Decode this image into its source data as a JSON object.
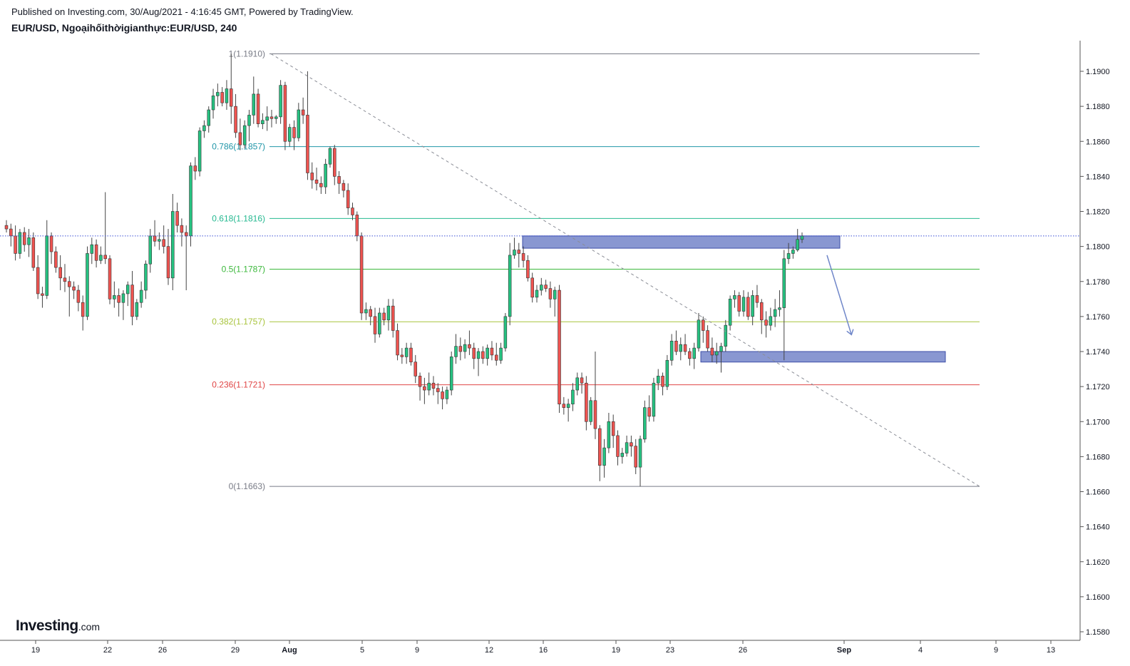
{
  "header": {
    "published": "Published on Investing.com, 30/Aug/2021 - 4:16:45 GMT, Powered by TradingView.",
    "symbol": "EUR/USD, Ngoạihốithờigianthực:EUR/USD, 240"
  },
  "logo": {
    "brand": "Investing",
    "suffix": ".com"
  },
  "colors": {
    "up": "#26c281",
    "down": "#ef5350",
    "wick": "#444444",
    "zone_fill": "#5c6fbf",
    "arrow": "#6f86c9",
    "last_price": "#3a4fd6"
  },
  "chart_data": {
    "type": "candlestick",
    "ylim": [
      1.1572,
      1.1922
    ],
    "y_ticks": [
      "1.1900",
      "1.1880",
      "1.1860",
      "1.1840",
      "1.1820",
      "1.1800",
      "1.1780",
      "1.1760",
      "1.1740",
      "1.1720",
      "1.1700",
      "1.1680",
      "1.1660",
      "1.1640",
      "1.1620",
      "1.1600",
      "1.1580"
    ],
    "x_ticks": [
      "19",
      "22",
      "26",
      "29",
      "Aug",
      "5",
      "9",
      "12",
      "16",
      "19",
      "23",
      "26",
      "Sep",
      "4",
      "9",
      "13"
    ],
    "last_price": 1.1806,
    "fibonacci": [
      {
        "label": "1(1.1910)",
        "value": 1.191,
        "color": "#787b86"
      },
      {
        "label": "0.786(1.1857)",
        "value": 1.1857,
        "color": "#2196a8"
      },
      {
        "label": "0.618(1.1816)",
        "value": 1.1816,
        "color": "#26b991"
      },
      {
        "label": "0.5(1.1787)",
        "value": 1.1787,
        "color": "#3cb83c"
      },
      {
        "label": "0.382(1.1757)",
        "value": 1.1757,
        "color": "#a8c43c"
      },
      {
        "label": "0.236(1.1721)",
        "value": 1.1721,
        "color": "#e04545"
      },
      {
        "label": "0(1.1663)",
        "value": 1.1663,
        "color": "#787b86"
      }
    ],
    "trendline": {
      "from": 1.191,
      "to": 1.1663
    },
    "zones": [
      {
        "top": 1.1806,
        "bottom": 1.1799
      },
      {
        "top": 1.174,
        "bottom": 1.1734
      }
    ],
    "candles": [
      [
        1.1812,
        1.1815,
        1.1808,
        1.181
      ],
      [
        1.181,
        1.1813,
        1.18,
        1.1806
      ],
      [
        1.1806,
        1.1812,
        1.1792,
        1.1796
      ],
      [
        1.1796,
        1.181,
        1.1793,
        1.1808
      ],
      [
        1.1808,
        1.1811,
        1.1797,
        1.1801
      ],
      [
        1.1801,
        1.181,
        1.1794,
        1.1805
      ],
      [
        1.1805,
        1.1808,
        1.1786,
        1.1788
      ],
      [
        1.1788,
        1.1795,
        1.177,
        1.1773
      ],
      [
        1.1773,
        1.1777,
        1.1765,
        1.1772
      ],
      [
        1.1772,
        1.1815,
        1.177,
        1.1806
      ],
      [
        1.1806,
        1.1808,
        1.179,
        1.1797
      ],
      [
        1.1797,
        1.18,
        1.1785,
        1.1788
      ],
      [
        1.1788,
        1.1795,
        1.1775,
        1.1782
      ],
      [
        1.1782,
        1.179,
        1.1774,
        1.178
      ],
      [
        1.178,
        1.1783,
        1.176,
        1.1777
      ],
      [
        1.1777,
        1.178,
        1.177,
        1.1775
      ],
      [
        1.1775,
        1.1778,
        1.1763,
        1.1768
      ],
      [
        1.1768,
        1.1772,
        1.1752,
        1.176
      ],
      [
        1.176,
        1.18,
        1.1758,
        1.1796
      ],
      [
        1.1796,
        1.1805,
        1.179,
        1.1801
      ],
      [
        1.1801,
        1.1804,
        1.1788,
        1.1792
      ],
      [
        1.1792,
        1.18,
        1.179,
        1.1795
      ],
      [
        1.1795,
        1.1831,
        1.179,
        1.1793
      ],
      [
        1.1793,
        1.1795,
        1.1767,
        1.177
      ],
      [
        1.177,
        1.178,
        1.1765,
        1.1772
      ],
      [
        1.1772,
        1.1776,
        1.176,
        1.1768
      ],
      [
        1.1768,
        1.1775,
        1.1758,
        1.1773
      ],
      [
        1.1773,
        1.178,
        1.1766,
        1.1778
      ],
      [
        1.1778,
        1.1786,
        1.1755,
        1.176
      ],
      [
        1.176,
        1.177,
        1.1758,
        1.1768
      ],
      [
        1.1768,
        1.178,
        1.1765,
        1.1775
      ],
      [
        1.1775,
        1.1792,
        1.177,
        1.179
      ],
      [
        1.179,
        1.181,
        1.1785,
        1.1806
      ],
      [
        1.1806,
        1.1815,
        1.18,
        1.1803
      ],
      [
        1.1803,
        1.1808,
        1.1798,
        1.1804
      ],
      [
        1.1804,
        1.1812,
        1.1796,
        1.18
      ],
      [
        1.18,
        1.181,
        1.1778,
        1.1782
      ],
      [
        1.1782,
        1.183,
        1.1775,
        1.182
      ],
      [
        1.182,
        1.1825,
        1.1808,
        1.1812
      ],
      [
        1.1812,
        1.1816,
        1.18,
        1.1808
      ],
      [
        1.1808,
        1.1812,
        1.1775,
        1.1806
      ],
      [
        1.1806,
        1.1848,
        1.18,
        1.1846
      ],
      [
        1.1846,
        1.1851,
        1.1838,
        1.1843
      ],
      [
        1.1843,
        1.1868,
        1.184,
        1.1866
      ],
      [
        1.1866,
        1.1872,
        1.1862,
        1.1869
      ],
      [
        1.1869,
        1.188,
        1.1865,
        1.1878
      ],
      [
        1.1878,
        1.189,
        1.1873,
        1.1886
      ],
      [
        1.1886,
        1.1893,
        1.188,
        1.1888
      ],
      [
        1.1888,
        1.1891,
        1.188,
        1.1882
      ],
      [
        1.1882,
        1.1895,
        1.1878,
        1.189
      ],
      [
        1.189,
        1.191,
        1.187,
        1.188
      ],
      [
        1.188,
        1.1887,
        1.1862,
        1.1865
      ],
      [
        1.1865,
        1.1873,
        1.1855,
        1.1858
      ],
      [
        1.1858,
        1.1872,
        1.1856,
        1.1869
      ],
      [
        1.1869,
        1.1878,
        1.186,
        1.1875
      ],
      [
        1.1875,
        1.1897,
        1.187,
        1.1887
      ],
      [
        1.1887,
        1.189,
        1.1868,
        1.187
      ],
      [
        1.187,
        1.1876,
        1.1867,
        1.1872
      ],
      [
        1.1872,
        1.188,
        1.1866,
        1.1874
      ],
      [
        1.1874,
        1.1878,
        1.1868,
        1.1873
      ],
      [
        1.1873,
        1.1875,
        1.187,
        1.1874
      ],
      [
        1.1874,
        1.1895,
        1.187,
        1.1892
      ],
      [
        1.1892,
        1.1894,
        1.1855,
        1.186
      ],
      [
        1.186,
        1.187,
        1.1857,
        1.1868
      ],
      [
        1.1868,
        1.1872,
        1.1855,
        1.1862
      ],
      [
        1.1862,
        1.1882,
        1.186,
        1.1878
      ],
      [
        1.1878,
        1.1885,
        1.187,
        1.1875
      ],
      [
        1.1875,
        1.19,
        1.1838,
        1.1842
      ],
      [
        1.1842,
        1.1848,
        1.1833,
        1.1838
      ],
      [
        1.1838,
        1.1845,
        1.1832,
        1.1836
      ],
      [
        1.1836,
        1.184,
        1.183,
        1.1834
      ],
      [
        1.1834,
        1.185,
        1.183,
        1.1847
      ],
      [
        1.1847,
        1.1857,
        1.1845,
        1.1856
      ],
      [
        1.1856,
        1.1858,
        1.1835,
        1.184
      ],
      [
        1.184,
        1.1843,
        1.183,
        1.1836
      ],
      [
        1.1836,
        1.1838,
        1.1828,
        1.1832
      ],
      [
        1.1832,
        1.1836,
        1.1818,
        1.1822
      ],
      [
        1.1822,
        1.1825,
        1.1815,
        1.1818
      ],
      [
        1.1818,
        1.182,
        1.1803,
        1.1806
      ],
      [
        1.1806,
        1.1808,
        1.1758,
        1.1762
      ],
      [
        1.1762,
        1.1768,
        1.1758,
        1.1764
      ],
      [
        1.1764,
        1.1766,
        1.1755,
        1.176
      ],
      [
        1.176,
        1.1765,
        1.1745,
        1.175
      ],
      [
        1.175,
        1.1765,
        1.1748,
        1.1762
      ],
      [
        1.1762,
        1.1765,
        1.1755,
        1.1758
      ],
      [
        1.1758,
        1.177,
        1.1752,
        1.1766
      ],
      [
        1.1766,
        1.177,
        1.1748,
        1.1752
      ],
      [
        1.1752,
        1.1756,
        1.1735,
        1.1738
      ],
      [
        1.1738,
        1.1742,
        1.1733,
        1.1737
      ],
      [
        1.1737,
        1.1745,
        1.1733,
        1.1742
      ],
      [
        1.1742,
        1.1745,
        1.1732,
        1.1734
      ],
      [
        1.1734,
        1.1738,
        1.1722,
        1.1726
      ],
      [
        1.1726,
        1.1728,
        1.1712,
        1.172
      ],
      [
        1.172,
        1.1725,
        1.171,
        1.1718
      ],
      [
        1.1718,
        1.1728,
        1.1715,
        1.1722
      ],
      [
        1.1722,
        1.1726,
        1.1715,
        1.1719
      ],
      [
        1.1719,
        1.1722,
        1.171,
        1.1717
      ],
      [
        1.1717,
        1.172,
        1.1707,
        1.1713
      ],
      [
        1.1713,
        1.172,
        1.171,
        1.1718
      ],
      [
        1.1718,
        1.174,
        1.1715,
        1.1737
      ],
      [
        1.1737,
        1.175,
        1.1733,
        1.1743
      ],
      [
        1.1743,
        1.1748,
        1.1735,
        1.174
      ],
      [
        1.174,
        1.1747,
        1.1736,
        1.1744
      ],
      [
        1.1744,
        1.1752,
        1.1738,
        1.1742
      ],
      [
        1.1742,
        1.1745,
        1.173,
        1.1736
      ],
      [
        1.1736,
        1.1742,
        1.1726,
        1.174
      ],
      [
        1.174,
        1.1743,
        1.1733,
        1.1736
      ],
      [
        1.1736,
        1.1744,
        1.1732,
        1.1742
      ],
      [
        1.1742,
        1.1746,
        1.1735,
        1.1738
      ],
      [
        1.1738,
        1.1745,
        1.1732,
        1.1735
      ],
      [
        1.1735,
        1.1745,
        1.1733,
        1.1742
      ],
      [
        1.1742,
        1.1762,
        1.174,
        1.176
      ],
      [
        1.176,
        1.1802,
        1.1755,
        1.1795
      ],
      [
        1.1795,
        1.1805,
        1.1793,
        1.1798
      ],
      [
        1.1798,
        1.1802,
        1.1788,
        1.1796
      ],
      [
        1.1796,
        1.18,
        1.1788,
        1.1792
      ],
      [
        1.1792,
        1.1795,
        1.178,
        1.1782
      ],
      [
        1.1782,
        1.1785,
        1.1768,
        1.1771
      ],
      [
        1.1771,
        1.1778,
        1.1768,
        1.1775
      ],
      [
        1.1775,
        1.1782,
        1.1772,
        1.1778
      ],
      [
        1.1778,
        1.1781,
        1.1774,
        1.1776
      ],
      [
        1.1776,
        1.178,
        1.1765,
        1.177
      ],
      [
        1.177,
        1.1777,
        1.176,
        1.1775
      ],
      [
        1.1775,
        1.1778,
        1.1705,
        1.171
      ],
      [
        1.171,
        1.1714,
        1.1704,
        1.1708
      ],
      [
        1.1708,
        1.1713,
        1.17,
        1.171
      ],
      [
        1.171,
        1.1722,
        1.1706,
        1.1718
      ],
      [
        1.1718,
        1.1728,
        1.1715,
        1.1725
      ],
      [
        1.1725,
        1.1728,
        1.1716,
        1.1722
      ],
      [
        1.1722,
        1.1726,
        1.1695,
        1.17
      ],
      [
        1.17,
        1.1714,
        1.1698,
        1.1712
      ],
      [
        1.1712,
        1.174,
        1.169,
        1.1696
      ],
      [
        1.1696,
        1.1698,
        1.1666,
        1.1675
      ],
      [
        1.1675,
        1.169,
        1.1668,
        1.1685
      ],
      [
        1.1685,
        1.1705,
        1.1682,
        1.17
      ],
      [
        1.17,
        1.1704,
        1.1685,
        1.1692
      ],
      [
        1.1692,
        1.1695,
        1.1675,
        1.168
      ],
      [
        1.168,
        1.1685,
        1.1676,
        1.1682
      ],
      [
        1.1682,
        1.1692,
        1.168,
        1.1688
      ],
      [
        1.1688,
        1.1692,
        1.168,
        1.1686
      ],
      [
        1.1686,
        1.169,
        1.167,
        1.1674
      ],
      [
        1.1674,
        1.1692,
        1.1663,
        1.169
      ],
      [
        1.169,
        1.1712,
        1.1688,
        1.1708
      ],
      [
        1.1708,
        1.1715,
        1.17,
        1.1703
      ],
      [
        1.1703,
        1.1725,
        1.17,
        1.1722
      ],
      [
        1.1722,
        1.173,
        1.1718,
        1.1726
      ],
      [
        1.1726,
        1.1728,
        1.1715,
        1.172
      ],
      [
        1.172,
        1.1738,
        1.1718,
        1.1735
      ],
      [
        1.1735,
        1.175,
        1.1732,
        1.1746
      ],
      [
        1.1746,
        1.1752,
        1.1738,
        1.174
      ],
      [
        1.174,
        1.1748,
        1.1735,
        1.1744
      ],
      [
        1.1744,
        1.175,
        1.1738,
        1.174
      ],
      [
        1.174,
        1.1742,
        1.1732,
        1.1736
      ],
      [
        1.1736,
        1.1745,
        1.173,
        1.1742
      ],
      [
        1.1742,
        1.1762,
        1.174,
        1.1758
      ],
      [
        1.1758,
        1.176,
        1.1745,
        1.1752
      ],
      [
        1.1752,
        1.1755,
        1.174,
        1.1742
      ],
      [
        1.1742,
        1.1748,
        1.1734,
        1.1738
      ],
      [
        1.1738,
        1.1745,
        1.1733,
        1.174
      ],
      [
        1.174,
        1.1745,
        1.1728,
        1.1743
      ],
      [
        1.1743,
        1.1758,
        1.174,
        1.1755
      ],
      [
        1.1755,
        1.1772,
        1.1752,
        1.177
      ],
      [
        1.177,
        1.1775,
        1.1765,
        1.1772
      ],
      [
        1.1772,
        1.1774,
        1.176,
        1.1763
      ],
      [
        1.1763,
        1.1775,
        1.176,
        1.1771
      ],
      [
        1.1771,
        1.1774,
        1.1758,
        1.176
      ],
      [
        1.176,
        1.1775,
        1.1755,
        1.1772
      ],
      [
        1.1772,
        1.1778,
        1.1765,
        1.1768
      ],
      [
        1.1768,
        1.177,
        1.175,
        1.1758
      ],
      [
        1.1758,
        1.1763,
        1.1748,
        1.1755
      ],
      [
        1.1755,
        1.1765,
        1.1752,
        1.176
      ],
      [
        1.176,
        1.177,
        1.1754,
        1.1764
      ],
      [
        1.1764,
        1.1775,
        1.176,
        1.1765
      ],
      [
        1.1765,
        1.1798,
        1.1735,
        1.1793
      ],
      [
        1.1793,
        1.1802,
        1.179,
        1.1796
      ],
      [
        1.1796,
        1.18,
        1.1793,
        1.1798
      ],
      [
        1.1798,
        1.181,
        1.1797,
        1.1804
      ],
      [
        1.1804,
        1.1808,
        1.1802,
        1.1806
      ]
    ]
  }
}
